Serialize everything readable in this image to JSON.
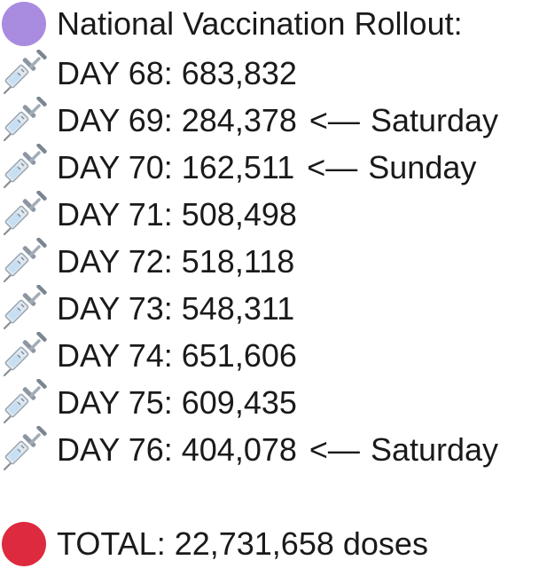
{
  "header": {
    "icon": "purple-circle",
    "color": "#a98be0",
    "text": "National Vaccination Rollout:"
  },
  "days": [
    {
      "label": "DAY 68:",
      "value": "683,832",
      "note": ""
    },
    {
      "label": "DAY 69:",
      "value": "284,378",
      "note": "Saturday"
    },
    {
      "label": "DAY 70:",
      "value": "162,511",
      "note": "Sunday"
    },
    {
      "label": "DAY 71:",
      "value": "508,498",
      "note": ""
    },
    {
      "label": "DAY 72:",
      "value": "518,118",
      "note": ""
    },
    {
      "label": "DAY 73:",
      "value": "548,311",
      "note": ""
    },
    {
      "label": "DAY 74:",
      "value": "651,606",
      "note": ""
    },
    {
      "label": "DAY 75:",
      "value": "609,435",
      "note": ""
    },
    {
      "label": "DAY 76:",
      "value": "404,078",
      "note": "Saturday"
    }
  ],
  "arrow": "<—",
  "row_icon": "syringe",
  "total": {
    "icon": "red-circle",
    "color": "#dd2a3f",
    "text": "TOTAL: 22,731,658 doses"
  }
}
